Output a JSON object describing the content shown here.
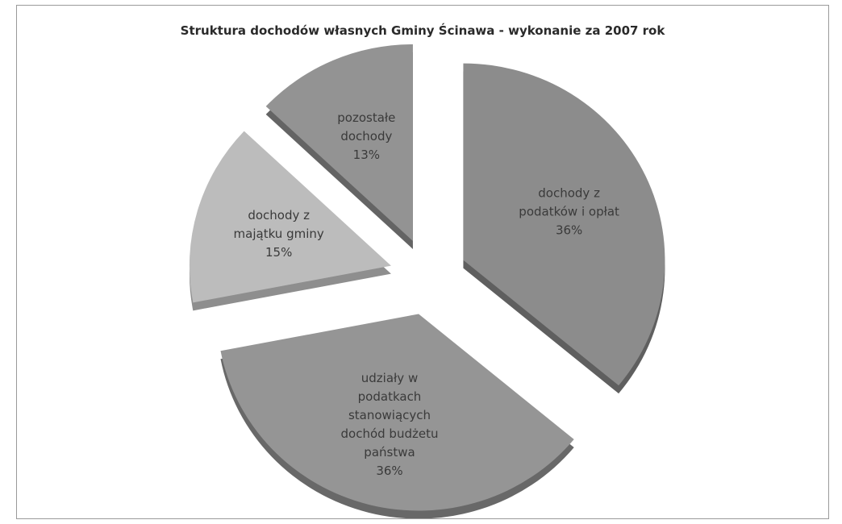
{
  "chart_data": {
    "type": "pie",
    "title": "Struktura dochodów własnych Gminy Ścinawa - wykonanie za 2007 rok",
    "legend": "none",
    "slices": [
      {
        "label_lines": [
          "dochody z",
          "podatków i opłat"
        ],
        "percent_label": "36%",
        "value": 36,
        "color": "#8c8c8c",
        "side_color": "#5f5f5f"
      },
      {
        "label_lines": [
          "udziały w",
          "podatkach",
          "stanowiących",
          "dochód budżetu",
          "państwa"
        ],
        "percent_label": "36%",
        "value": 36,
        "color": "#959595",
        "side_color": "#686868"
      },
      {
        "label_lines": [
          "dochody z",
          "majątku gminy"
        ],
        "percent_label": "15%",
        "value": 15,
        "color": "#bcbcbc",
        "side_color": "#8e8e8e"
      },
      {
        "label_lines": [
          "pozostałe",
          "dochody"
        ],
        "percent_label": "13%",
        "value": 13,
        "color": "#939393",
        "side_color": "#646464"
      }
    ]
  }
}
